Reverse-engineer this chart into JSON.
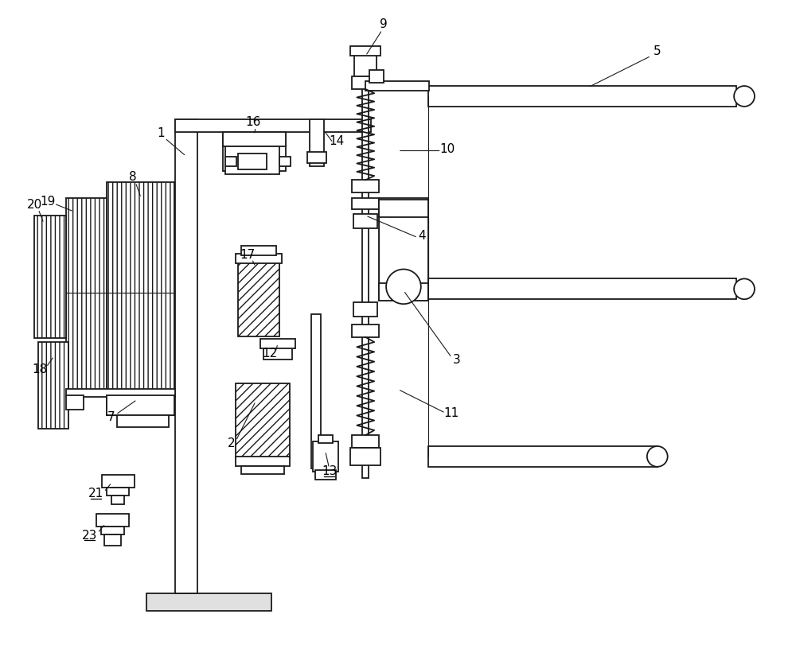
{
  "bg_color": "#ffffff",
  "line_color": "#1a1a1a",
  "lw": 1.3,
  "lw_thin": 0.8,
  "fs": 11,
  "fig_w": 10.0,
  "fig_h": 8.21
}
